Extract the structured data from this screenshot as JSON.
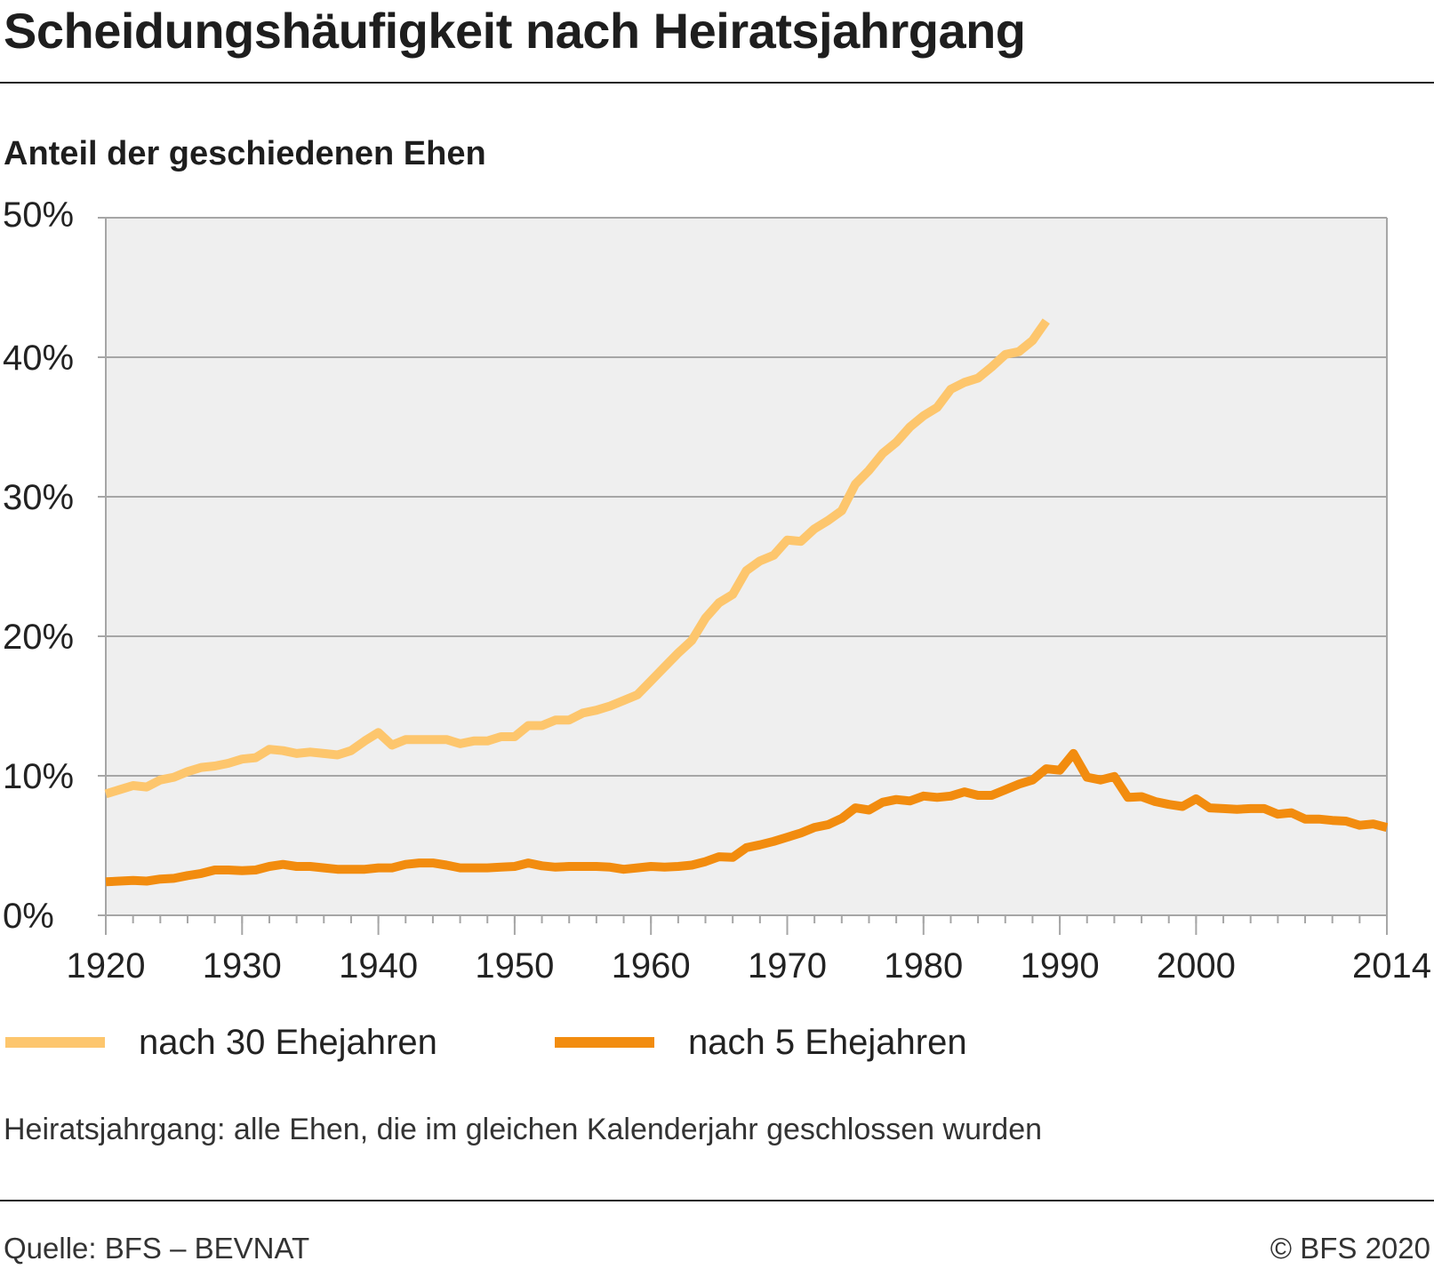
{
  "header": {
    "title": "Scheidungshäufigkeit nach Heiratsjahrgang",
    "subtitle": "Anteil der geschiedenen Ehen"
  },
  "footer": {
    "note": "Heiratsjahrgang: alle Ehen, die im gleichen Kalenderjahr geschlossen wurden",
    "source": "Quelle: BFS – BEVNAT",
    "copyright": "© BFS 2020"
  },
  "colors": {
    "plot_background": "#efefef",
    "grid": "#a6a6a6",
    "series_30": "#fdc66d",
    "series_5": "#f28c0f"
  },
  "chart_data": {
    "type": "line",
    "title": "Scheidungshäufigkeit nach Heiratsjahrgang",
    "ylabel": "Anteil der geschiedenen Ehen",
    "xlabel": "",
    "xlim": [
      1920,
      2014
    ],
    "ylim": [
      0,
      50
    ],
    "x_ticks": [
      1920,
      1930,
      1940,
      1950,
      1960,
      1970,
      1980,
      1990,
      2000,
      2014
    ],
    "y_ticks": [
      0,
      10,
      20,
      30,
      40,
      50
    ],
    "y_tick_labels": [
      "0%",
      "10%",
      "20%",
      "30%",
      "40%",
      "50%"
    ],
    "grid": true,
    "legend_position": "bottom",
    "series": [
      {
        "name": "nach 30 Ehejahren",
        "color": "#fdc66d",
        "x": [
          1920,
          1921,
          1922,
          1923,
          1924,
          1925,
          1926,
          1927,
          1928,
          1929,
          1930,
          1931,
          1932,
          1933,
          1934,
          1935,
          1936,
          1937,
          1938,
          1939,
          1940,
          1941,
          1942,
          1943,
          1944,
          1945,
          1946,
          1947,
          1948,
          1949,
          1950,
          1951,
          1952,
          1953,
          1954,
          1955,
          1956,
          1957,
          1958,
          1959,
          1960,
          1961,
          1962,
          1963,
          1964,
          1965,
          1966,
          1967,
          1968,
          1969,
          1970,
          1971,
          1972,
          1973,
          1974,
          1975,
          1976,
          1977,
          1978,
          1979,
          1980,
          1981,
          1982,
          1983,
          1984,
          1985,
          1986,
          1987,
          1988,
          1989
        ],
        "y": [
          8.7,
          9.0,
          9.3,
          9.2,
          9.7,
          9.9,
          10.3,
          10.6,
          10.7,
          10.9,
          11.2,
          11.3,
          11.9,
          11.8,
          11.6,
          11.7,
          11.6,
          11.5,
          11.8,
          12.5,
          13.1,
          12.2,
          12.6,
          12.6,
          12.6,
          12.6,
          12.3,
          12.5,
          12.5,
          12.8,
          12.8,
          13.6,
          13.6,
          14.0,
          14.0,
          14.5,
          14.7,
          15.0,
          15.4,
          15.8,
          16.8,
          17.8,
          18.8,
          19.7,
          21.3,
          22.4,
          23.0,
          24.7,
          25.4,
          25.8,
          26.9,
          26.8,
          27.7,
          28.3,
          29.0,
          30.9,
          31.9,
          33.1,
          33.9,
          35.0,
          35.8,
          36.4,
          37.7,
          38.2,
          38.5,
          39.3,
          40.2,
          40.4,
          41.2,
          42.6
        ]
      },
      {
        "name": "nach 5 Ehejahren",
        "color": "#f28c0f",
        "x": [
          1920,
          1921,
          1922,
          1923,
          1924,
          1925,
          1926,
          1927,
          1928,
          1929,
          1930,
          1931,
          1932,
          1933,
          1934,
          1935,
          1936,
          1937,
          1938,
          1939,
          1940,
          1941,
          1942,
          1943,
          1944,
          1945,
          1946,
          1947,
          1948,
          1949,
          1950,
          1951,
          1952,
          1953,
          1954,
          1955,
          1956,
          1957,
          1958,
          1959,
          1960,
          1961,
          1962,
          1963,
          1964,
          1965,
          1966,
          1967,
          1968,
          1969,
          1970,
          1971,
          1972,
          1973,
          1974,
          1975,
          1976,
          1977,
          1978,
          1979,
          1980,
          1981,
          1982,
          1983,
          1984,
          1985,
          1986,
          1987,
          1988,
          1989,
          1990,
          1991,
          1992,
          1993,
          1994,
          1995,
          1996,
          1997,
          1998,
          1999,
          2000,
          2001,
          2002,
          2003,
          2004,
          2005,
          2006,
          2007,
          2008,
          2009,
          2010,
          2011,
          2012,
          2013,
          2014
        ],
        "y": [
          2.4,
          2.45,
          2.5,
          2.45,
          2.6,
          2.65,
          2.85,
          3.0,
          3.25,
          3.25,
          3.2,
          3.25,
          3.5,
          3.65,
          3.5,
          3.5,
          3.4,
          3.3,
          3.3,
          3.3,
          3.4,
          3.4,
          3.65,
          3.75,
          3.75,
          3.6,
          3.4,
          3.4,
          3.4,
          3.45,
          3.5,
          3.75,
          3.55,
          3.45,
          3.5,
          3.5,
          3.5,
          3.45,
          3.3,
          3.4,
          3.5,
          3.45,
          3.5,
          3.6,
          3.85,
          4.2,
          4.15,
          4.85,
          5.05,
          5.3,
          5.6,
          5.9,
          6.3,
          6.5,
          6.95,
          7.7,
          7.55,
          8.1,
          8.3,
          8.2,
          8.55,
          8.45,
          8.55,
          8.85,
          8.6,
          8.6,
          9.0,
          9.4,
          9.7,
          10.5,
          10.4,
          11.6,
          9.9,
          9.7,
          9.95,
          8.45,
          8.5,
          8.15,
          7.95,
          7.8,
          8.35,
          7.7,
          7.65,
          7.6,
          7.65,
          7.65,
          7.25,
          7.35,
          6.9,
          6.9,
          6.8,
          6.75,
          6.45,
          6.55,
          6.3
        ]
      }
    ]
  }
}
